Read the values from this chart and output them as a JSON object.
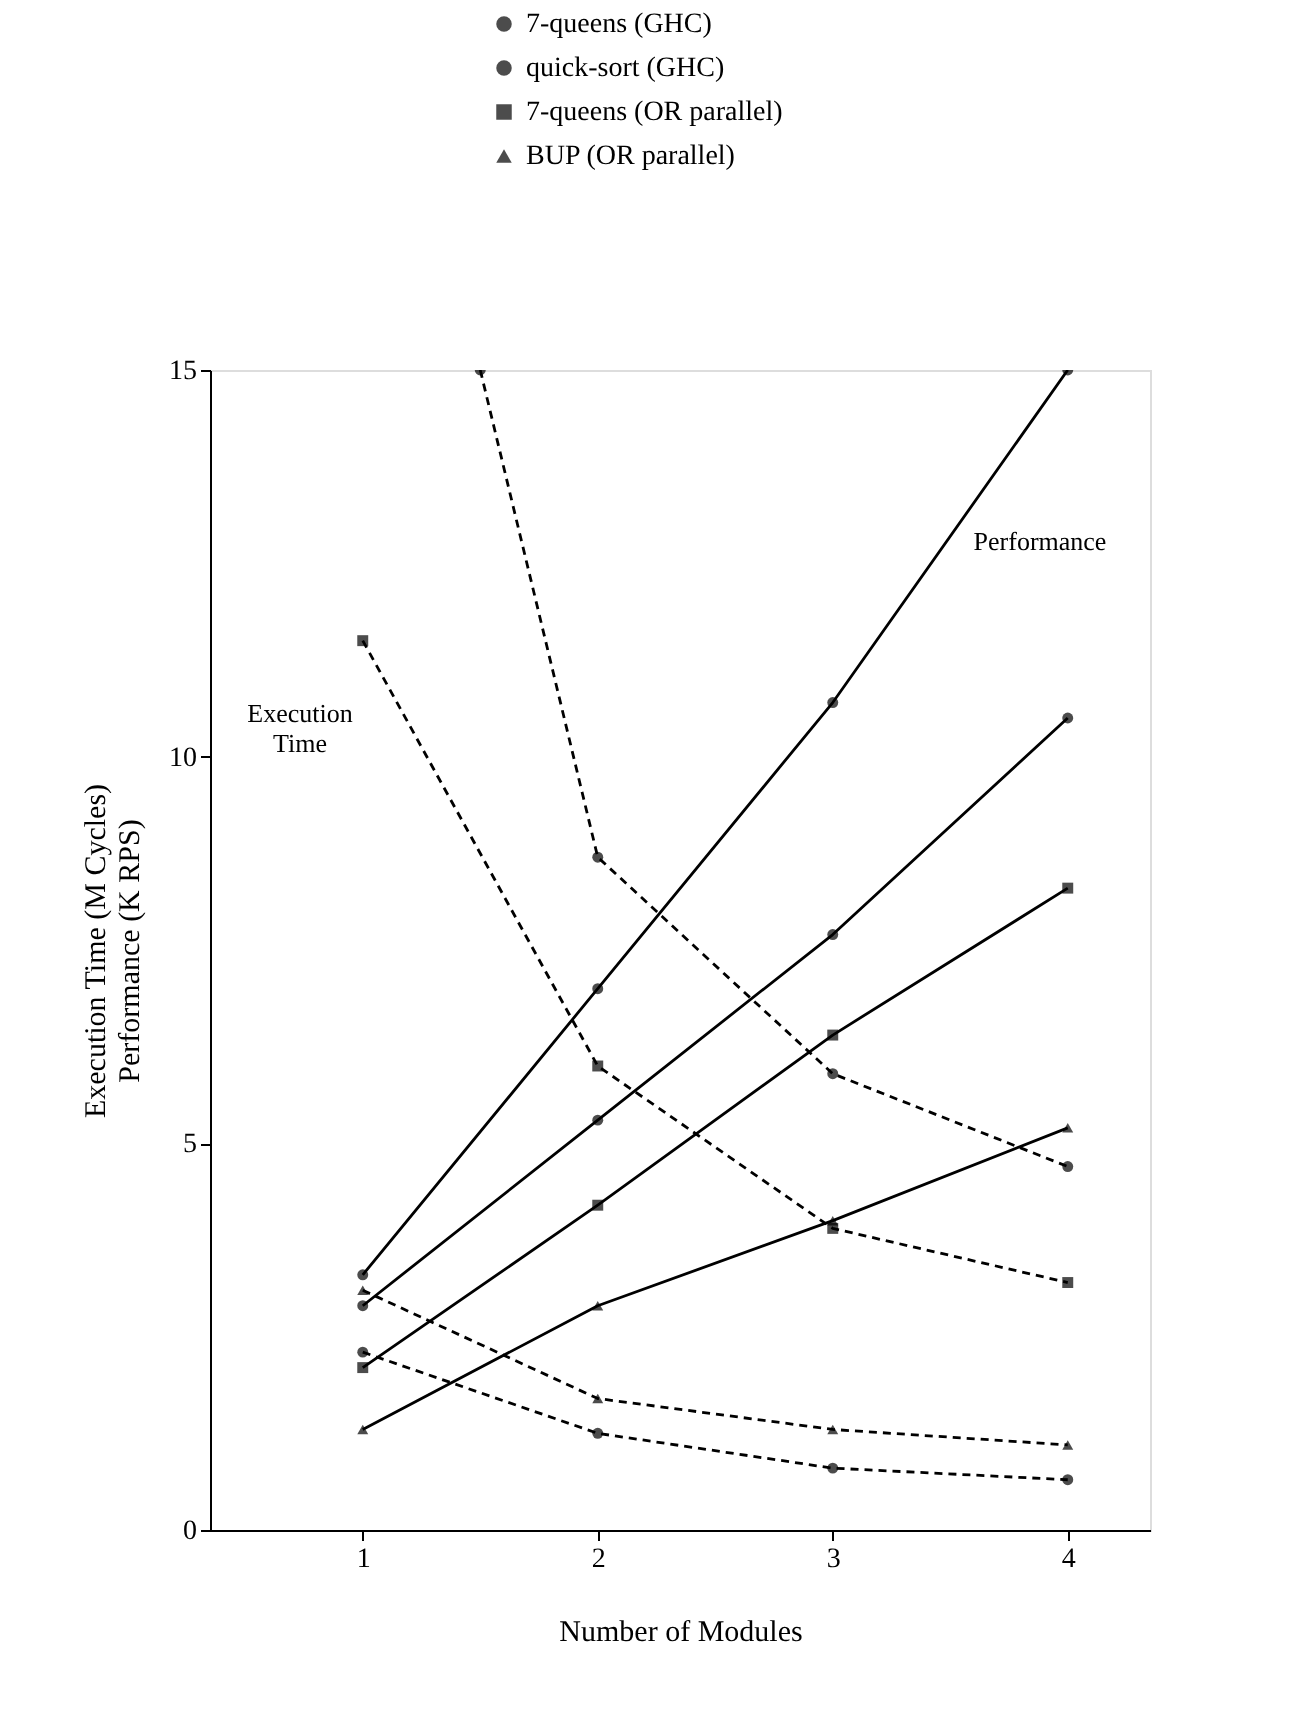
{
  "chart_data": {
    "type": "line",
    "xlabel": "Number of Modules",
    "ylabel": "Execution Time (M Cycles)\nPerformance (K RPS)",
    "series": [
      {
        "name": "7-queens (GHC)",
        "color": "#000000",
        "marker": "circle",
        "line_style": "solid",
        "x": [
          1,
          2,
          3,
          4
        ],
        "values": [
          3.3,
          7.0,
          10.7,
          15.0
        ]
      },
      {
        "name": "quick-sort (GHC)",
        "color": "#000000",
        "marker": "circle",
        "line_style": "solid",
        "x": [
          1,
          2,
          3,
          4
        ],
        "values": [
          2.9,
          5.3,
          7.7,
          10.5
        ]
      },
      {
        "name": "7-queens (OR parallel)",
        "color": "#000000",
        "marker": "square",
        "line_style": "solid",
        "x": [
          1,
          2,
          3,
          4
        ],
        "values": [
          2.1,
          4.2,
          6.4,
          8.3
        ]
      },
      {
        "name": "BUP (OR parallel)",
        "color": "#000000",
        "marker": "triangle",
        "line_style": "solid",
        "x": [
          1,
          2,
          3,
          4
        ],
        "values": [
          1.3,
          2.9,
          4.0,
          5.2
        ]
      },
      {
        "color": "#000000",
        "marker": "circle",
        "line_style": "dashed",
        "x": [
          1.5,
          2,
          3,
          4
        ],
        "values": [
          15.0,
          8.7,
          5.9,
          4.7
        ]
      },
      {
        "color": "#000000",
        "marker": "square",
        "line_style": "dashed",
        "x": [
          1,
          2,
          3,
          4
        ],
        "values": [
          11.5,
          6.0,
          3.9,
          3.2
        ]
      },
      {
        "color": "#000000",
        "marker": "triangle",
        "line_style": "dashed",
        "x": [
          1,
          2,
          3,
          4
        ],
        "values": [
          3.1,
          1.7,
          1.3,
          1.1
        ]
      },
      {
        "color": "#000000",
        "marker": "circle",
        "line_style": "dashed",
        "x": [
          1,
          2,
          3,
          4
        ],
        "values": [
          2.3,
          1.25,
          0.8,
          0.65
        ]
      }
    ],
    "xlim": [
      0.35,
      4.35
    ],
    "xticks": [
      1,
      2,
      3,
      4
    ],
    "ylim": [
      0,
      15
    ],
    "yticks": [
      0,
      5,
      10,
      15
    ],
    "grid": false,
    "legend": "top",
    "annotations": [
      "Performance",
      "Execution Time"
    ]
  }
}
